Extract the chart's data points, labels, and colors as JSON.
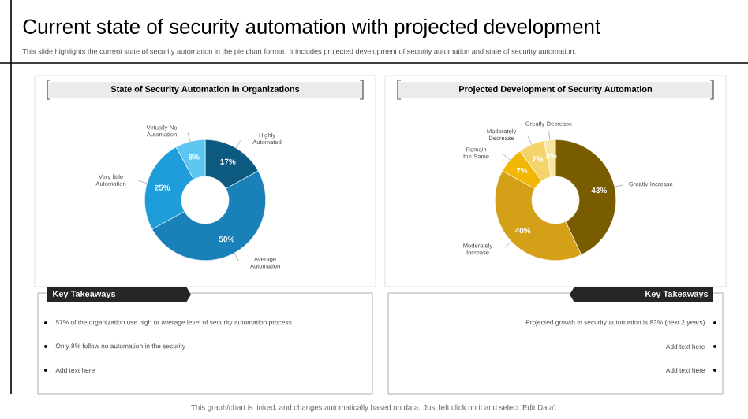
{
  "chart_data": [
    {
      "type": "other",
      "title": "Current state of security automation with projected development",
      "subtitle": "This slide highlights the current state of security automation in the pie chart format. It includes projected development of security automation and state of security automation.",
      "annotations": [
        "This graph/chart is linked, and changes automatically based on data. Just left click on it and select 'Edit Data'."
      ]
    },
    {
      "type": "donut",
      "title": "State of Security Automation in Organizations",
      "categories": [
        "Highly Automated",
        "Average Automation",
        "Very little Automation",
        "Virtually No Automation"
      ],
      "values": [
        17,
        50,
        25,
        8
      ],
      "value_labels": [
        "17%",
        "50%",
        "25%",
        "8%"
      ],
      "colors": [
        "#0d5a80",
        "#1a80b8",
        "#1f9ddb",
        "#5cc6f0"
      ],
      "annotations": [
        "Key Takeaways",
        "57% of the organization use high or average level of security automation process",
        "Only 8% follow no automation in the security",
        "Add text here"
      ]
    },
    {
      "type": "donut",
      "title": "Projected Development of Security Automation",
      "categories": [
        "Greatly Increase",
        "Moderately Increase",
        "Remain the Same",
        "Moderately Decrease",
        "Greatly Decrease"
      ],
      "values": [
        43,
        40,
        7,
        7,
        3
      ],
      "value_labels": [
        "43%",
        "40%",
        "7%",
        "7%",
        "3%"
      ],
      "colors": [
        "#7a5c00",
        "#d4a017",
        "#f2b705",
        "#f5d36b",
        "#f8e6a0"
      ],
      "annotations": [
        "Key Takeaways",
        "Projected growth in security automation is 83% (next 2 years)",
        "Add text here",
        "Add text here"
      ]
    }
  ]
}
